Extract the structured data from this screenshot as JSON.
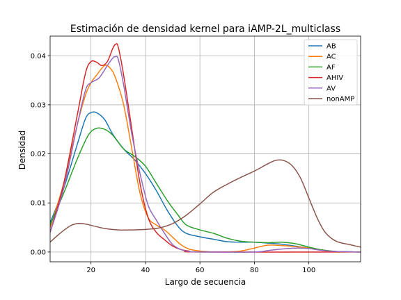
{
  "chart_data": {
    "type": "line",
    "title": "Estimación de densidad kernel para iAMP-2L_multiclass",
    "xlabel": "Largo de secuencia",
    "ylabel": "Densidad",
    "xlim": [
      5,
      119
    ],
    "ylim": [
      -0.002,
      0.044
    ],
    "xticks": [
      20,
      40,
      60,
      80,
      100
    ],
    "yticks": [
      0.0,
      0.01,
      0.02,
      0.03,
      0.04
    ],
    "xtick_labels": [
      "20",
      "40",
      "60",
      "80",
      "100"
    ],
    "ytick_labels": [
      "0.00",
      "0.01",
      "0.02",
      "0.03",
      "0.04"
    ],
    "grid": true,
    "legend_position": "top-right",
    "series": [
      {
        "name": "AB",
        "color": "#1f77b4",
        "points": [
          [
            5,
            0.006
          ],
          [
            10,
            0.013
          ],
          [
            15,
            0.022
          ],
          [
            18,
            0.0272
          ],
          [
            20,
            0.0284
          ],
          [
            22,
            0.0284
          ],
          [
            25,
            0.027
          ],
          [
            28,
            0.024
          ],
          [
            32,
            0.021
          ],
          [
            36,
            0.0188
          ],
          [
            40,
            0.016
          ],
          [
            44,
            0.0125
          ],
          [
            48,
            0.0085
          ],
          [
            52,
            0.0052
          ],
          [
            55,
            0.0038
          ],
          [
            60,
            0.0031
          ],
          [
            65,
            0.0026
          ],
          [
            70,
            0.0021
          ],
          [
            75,
            0.002
          ],
          [
            80,
            0.002
          ],
          [
            85,
            0.0018
          ],
          [
            90,
            0.0016
          ],
          [
            95,
            0.0012
          ],
          [
            100,
            0.0008
          ],
          [
            105,
            0.0004
          ],
          [
            110,
            0.0001
          ],
          [
            119,
            0.0
          ]
        ]
      },
      {
        "name": "AC",
        "color": "#ff7f0e",
        "points": [
          [
            5,
            0.005
          ],
          [
            10,
            0.014
          ],
          [
            15,
            0.026
          ],
          [
            18,
            0.032
          ],
          [
            20,
            0.0345
          ],
          [
            22,
            0.036
          ],
          [
            25,
            0.038
          ],
          [
            27,
            0.0375
          ],
          [
            29,
            0.0355
          ],
          [
            32,
            0.03
          ],
          [
            35,
            0.021
          ],
          [
            38,
            0.012
          ],
          [
            41,
            0.007
          ],
          [
            44,
            0.0055
          ],
          [
            47,
            0.0045
          ],
          [
            50,
            0.003
          ],
          [
            53,
            0.0015
          ],
          [
            56,
            0.0006
          ],
          [
            60,
            0.0002
          ],
          [
            65,
            0.0
          ],
          [
            70,
            0.0
          ],
          [
            75,
            0.0002
          ],
          [
            80,
            0.0008
          ],
          [
            85,
            0.0014
          ],
          [
            90,
            0.0013
          ],
          [
            95,
            0.0011
          ],
          [
            100,
            0.0008
          ],
          [
            105,
            0.0004
          ],
          [
            110,
            0.0001
          ],
          [
            119,
            0.0
          ]
        ]
      },
      {
        "name": "AF",
        "color": "#2ca02c",
        "points": [
          [
            5,
            0.0055
          ],
          [
            10,
            0.012
          ],
          [
            15,
            0.019
          ],
          [
            19,
            0.0238
          ],
          [
            22,
            0.0252
          ],
          [
            25,
            0.025
          ],
          [
            28,
            0.0238
          ],
          [
            32,
            0.021
          ],
          [
            36,
            0.0195
          ],
          [
            40,
            0.0175
          ],
          [
            44,
            0.014
          ],
          [
            48,
            0.0105
          ],
          [
            52,
            0.0075
          ],
          [
            55,
            0.0055
          ],
          [
            60,
            0.0045
          ],
          [
            65,
            0.0038
          ],
          [
            70,
            0.0028
          ],
          [
            75,
            0.0022
          ],
          [
            80,
            0.002
          ],
          [
            85,
            0.0019
          ],
          [
            90,
            0.002
          ],
          [
            95,
            0.0017
          ],
          [
            100,
            0.001
          ],
          [
            105,
            0.0004
          ],
          [
            110,
            0.0001
          ],
          [
            119,
            0.0
          ]
        ]
      },
      {
        "name": "AHIV",
        "color": "#d62728",
        "points": [
          [
            5,
            0.004
          ],
          [
            10,
            0.014
          ],
          [
            15,
            0.028
          ],
          [
            18,
            0.0365
          ],
          [
            20,
            0.0388
          ],
          [
            22,
            0.0387
          ],
          [
            24,
            0.038
          ],
          [
            26,
            0.0388
          ],
          [
            28,
            0.0415
          ],
          [
            29,
            0.0423
          ],
          [
            30,
            0.0418
          ],
          [
            32,
            0.036
          ],
          [
            35,
            0.025
          ],
          [
            38,
            0.014
          ],
          [
            41,
            0.007
          ],
          [
            44,
            0.004
          ],
          [
            47,
            0.0025
          ],
          [
            50,
            0.0012
          ],
          [
            53,
            0.0005
          ],
          [
            56,
            0.0002
          ],
          [
            60,
            0.0
          ],
          [
            119,
            0.0
          ]
        ]
      },
      {
        "name": "AV",
        "color": "#9467bd",
        "points": [
          [
            5,
            0.004
          ],
          [
            10,
            0.013
          ],
          [
            15,
            0.026
          ],
          [
            18,
            0.033
          ],
          [
            20,
            0.0345
          ],
          [
            23,
            0.0355
          ],
          [
            26,
            0.038
          ],
          [
            28,
            0.0395
          ],
          [
            29,
            0.0398
          ],
          [
            30,
            0.0393
          ],
          [
            32,
            0.034
          ],
          [
            35,
            0.024
          ],
          [
            38,
            0.016
          ],
          [
            41,
            0.0095
          ],
          [
            44,
            0.0065
          ],
          [
            47,
            0.0038
          ],
          [
            50,
            0.0015
          ],
          [
            53,
            0.0005
          ],
          [
            56,
            0.0001
          ],
          [
            60,
            0.0
          ],
          [
            80,
            0.0
          ],
          [
            85,
            0.0003
          ],
          [
            90,
            0.0006
          ],
          [
            95,
            0.0008
          ],
          [
            100,
            0.0007
          ],
          [
            105,
            0.0003
          ],
          [
            110,
            0.0001
          ],
          [
            119,
            0.0
          ]
        ]
      },
      {
        "name": "nonAMP",
        "color": "#8c564b",
        "points": [
          [
            5,
            0.002
          ],
          [
            8,
            0.0035
          ],
          [
            12,
            0.0052
          ],
          [
            15,
            0.0058
          ],
          [
            18,
            0.0057
          ],
          [
            21,
            0.0053
          ],
          [
            25,
            0.0048
          ],
          [
            30,
            0.0045
          ],
          [
            35,
            0.0045
          ],
          [
            40,
            0.0046
          ],
          [
            45,
            0.0049
          ],
          [
            50,
            0.0058
          ],
          [
            55,
            0.0075
          ],
          [
            60,
            0.0098
          ],
          [
            65,
            0.0122
          ],
          [
            70,
            0.0138
          ],
          [
            75,
            0.0152
          ],
          [
            80,
            0.0165
          ],
          [
            85,
            0.018
          ],
          [
            88,
            0.0187
          ],
          [
            91,
            0.0186
          ],
          [
            94,
            0.0175
          ],
          [
            97,
            0.015
          ],
          [
            100,
            0.011
          ],
          [
            103,
            0.007
          ],
          [
            106,
            0.004
          ],
          [
            110,
            0.0022
          ],
          [
            115,
            0.0015
          ],
          [
            119,
            0.001
          ]
        ]
      }
    ]
  }
}
